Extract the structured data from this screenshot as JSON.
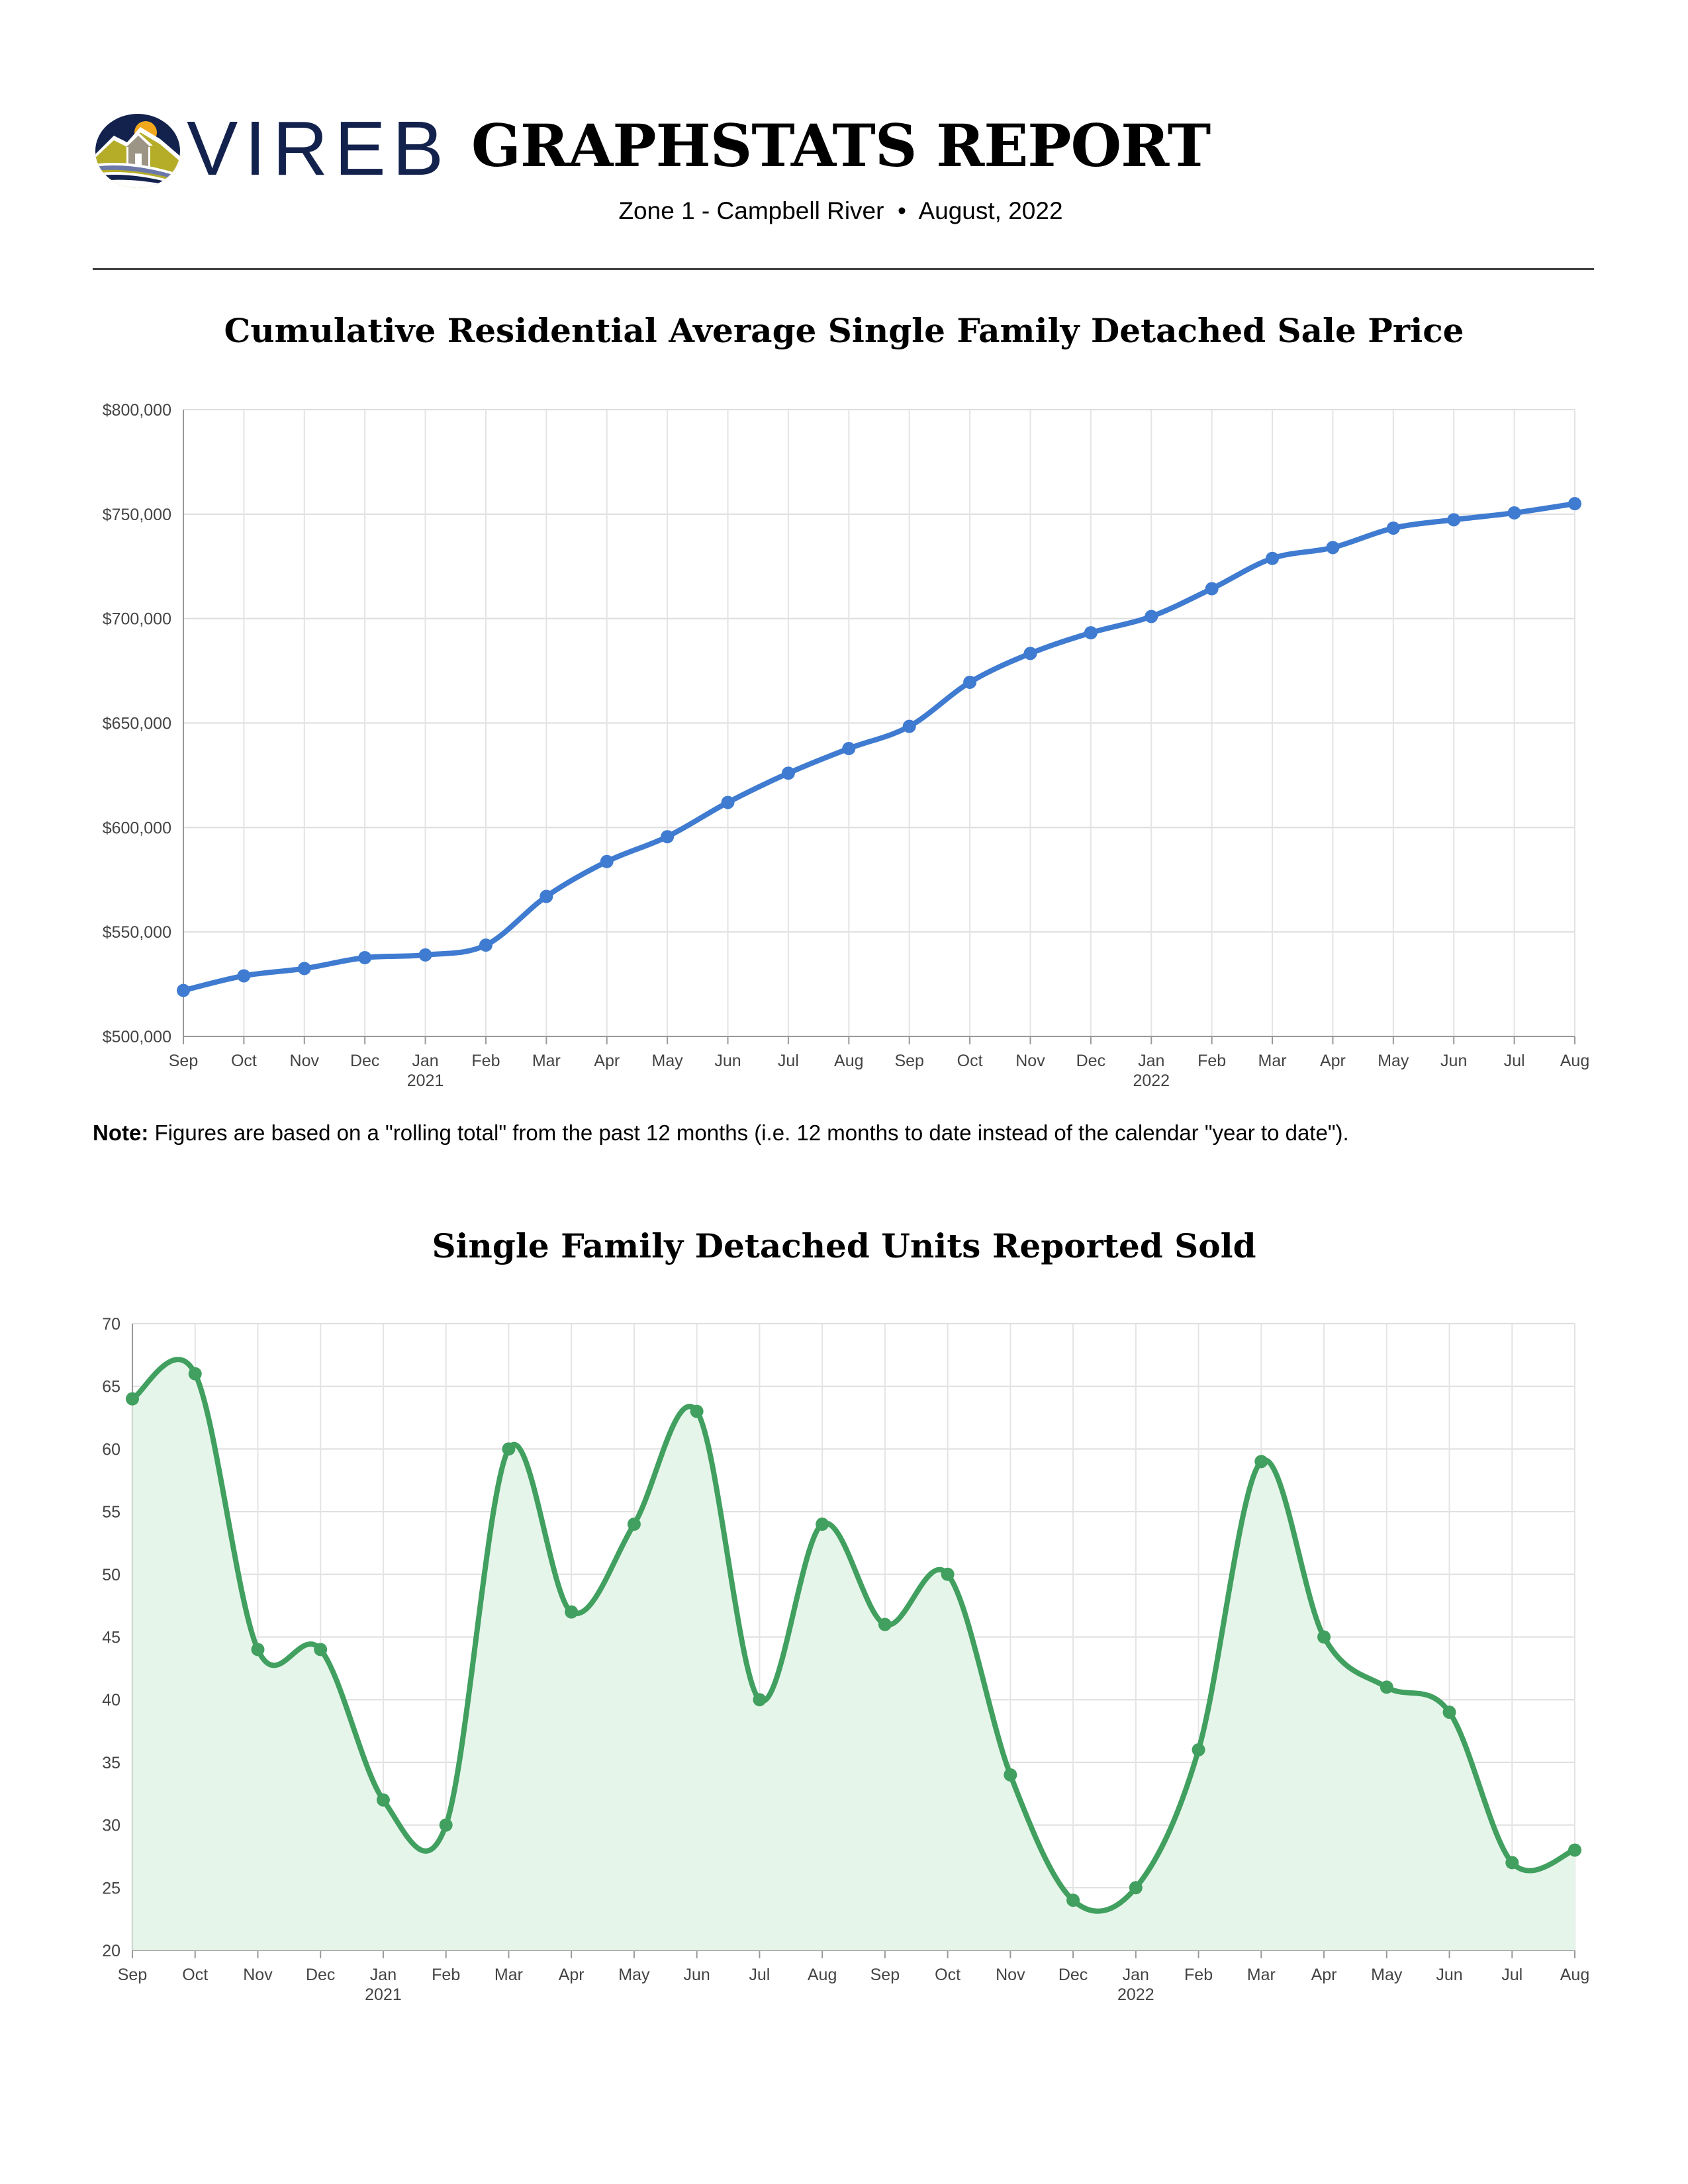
{
  "header": {
    "logo_text": "VIREB",
    "title": "GRAPHSTATS REPORT",
    "subtitle": "Zone 1 - Campbell River  •  August, 2022"
  },
  "note": {
    "label": "Note:",
    "text": " Figures are based on a \"rolling total\" from the past 12 months (i.e. 12 months to date instead of the calendar \"year to date\")."
  },
  "chart_data": [
    {
      "type": "line",
      "title": "Cumulative Residential Average Single Family Detached Sale Price",
      "categories": [
        "Sep",
        "Oct",
        "Nov",
        "Dec",
        "Jan",
        "Feb",
        "Mar",
        "Apr",
        "May",
        "Jun",
        "Jul",
        "Aug",
        "Sep",
        "Oct",
        "Nov",
        "Dec",
        "Jan",
        "Feb",
        "Mar",
        "Apr",
        "May",
        "Jun",
        "Jul",
        "Aug"
      ],
      "year_labels": {
        "4": "2021",
        "16": "2022"
      },
      "values": [
        522000,
        529000,
        532500,
        537700,
        539000,
        543700,
        567000,
        583700,
        595600,
        612000,
        626000,
        637800,
        648400,
        669500,
        683300,
        693200,
        701000,
        714300,
        728800,
        734000,
        743300,
        747300,
        750600,
        755000
      ],
      "ylim": [
        500000,
        800000
      ],
      "yticks": [
        "$500,000",
        "$550,000",
        "$600,000",
        "$650,000",
        "$700,000",
        "$750,000",
        "$800,000"
      ],
      "ytick_values": [
        500000,
        550000,
        600000,
        650000,
        700000,
        750000,
        800000
      ],
      "grid": true,
      "smooth": true,
      "color": "#3f7bd0"
    },
    {
      "type": "area",
      "title": "Single Family Detached Units Reported Sold",
      "categories": [
        "Sep",
        "Oct",
        "Nov",
        "Dec",
        "Jan",
        "Feb",
        "Mar",
        "Apr",
        "May",
        "Jun",
        "Jul",
        "Aug",
        "Sep",
        "Oct",
        "Nov",
        "Dec",
        "Jan",
        "Feb",
        "Mar",
        "Apr",
        "May",
        "Jun",
        "Jul",
        "Aug"
      ],
      "year_labels": {
        "4": "2021",
        "16": "2022"
      },
      "values": [
        64,
        66,
        44,
        44,
        32,
        30,
        60,
        47,
        54,
        63,
        40,
        54,
        46,
        50,
        34,
        24,
        25,
        36,
        59,
        45,
        41,
        39,
        27,
        28
      ],
      "ylim": [
        20,
        70
      ],
      "yticks": [
        "20",
        "25",
        "30",
        "35",
        "40",
        "45",
        "50",
        "55",
        "60",
        "65",
        "70"
      ],
      "ytick_values": [
        20,
        25,
        30,
        35,
        40,
        45,
        50,
        55,
        60,
        65,
        70
      ],
      "grid": true,
      "smooth": true,
      "color": "#41a05f",
      "fill_color": "#e6f5ea"
    }
  ]
}
